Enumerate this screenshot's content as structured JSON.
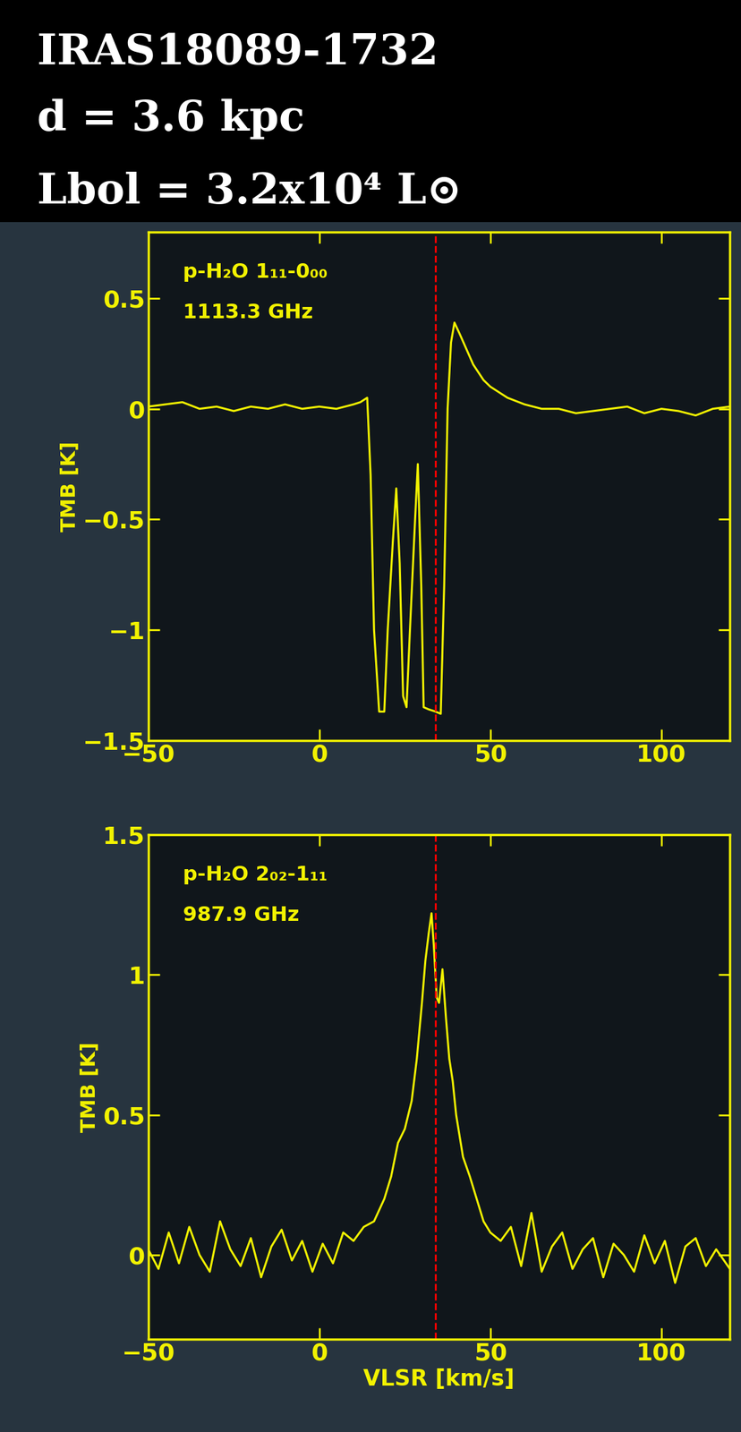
{
  "header": {
    "lines": [
      "IRAS18089-1732",
      "d = 3.6 kpc",
      "Lbol = 3.2x10⁴ L⊙"
    ]
  },
  "chart_data": [
    {
      "type": "line",
      "annotations": [
        "p-H₂O 1₁₁-0₀₀",
        "1113.3 GHz"
      ],
      "ylabel": "TMB [K]",
      "color": "#f2f200",
      "reference_velocity": 34,
      "x": [
        -50,
        -45,
        -40,
        -35,
        -30,
        -25,
        -20,
        -15,
        -10,
        -5,
        0,
        5,
        10,
        12,
        14,
        15,
        16,
        17.5,
        19,
        20,
        21.5,
        22.5,
        23.5,
        24.5,
        25.5,
        26.5,
        28,
        28.8,
        29.8,
        30.5,
        32,
        34,
        35.5,
        36.5,
        37.5,
        38.5,
        39.5,
        41,
        43,
        45,
        48,
        50,
        55,
        60,
        65,
        70,
        75,
        80,
        85,
        90,
        95,
        100,
        105,
        110,
        115,
        120
      ],
      "values": [
        0.01,
        0.02,
        0.03,
        0.0,
        0.01,
        -0.01,
        0.01,
        0.0,
        0.02,
        0.0,
        0.01,
        0.0,
        0.02,
        0.03,
        0.05,
        -0.3,
        -1.0,
        -1.37,
        -1.37,
        -1.0,
        -0.6,
        -0.36,
        -0.7,
        -1.3,
        -1.35,
        -1.0,
        -0.5,
        -0.25,
        -0.8,
        -1.35,
        -1.36,
        -1.37,
        -1.38,
        -0.8,
        0.0,
        0.3,
        0.39,
        0.34,
        0.27,
        0.2,
        0.13,
        0.1,
        0.05,
        0.02,
        0.0,
        0.0,
        -0.02,
        -0.01,
        0.0,
        0.01,
        -0.02,
        0.0,
        -0.01,
        -0.03,
        0.0,
        0.01
      ],
      "xlim": [
        -50,
        120
      ],
      "xticks": [
        {
          "value": -50,
          "label": "−50"
        },
        0,
        50,
        100
      ],
      "ylim": [
        -1.5,
        0.8
      ],
      "yticks": [
        {
          "value": -1.5,
          "label": "−1.5"
        },
        {
          "value": -1,
          "label": "−1"
        },
        {
          "value": -0.5,
          "label": "−0.5"
        },
        0,
        0.5
      ]
    },
    {
      "type": "line",
      "annotations": [
        "p-H₂O 2₀₂-1₁₁",
        "987.9 GHz"
      ],
      "ylabel": "TMB [K]",
      "xlabel": "VLSR [km/s]",
      "color": "#f2f200",
      "reference_velocity": 34,
      "x": [
        -50,
        -47,
        -44,
        -41,
        -38,
        -35,
        -32,
        -29,
        -26,
        -23,
        -20,
        -17,
        -14,
        -11,
        -8,
        -5,
        -2,
        1,
        4,
        7,
        10,
        13,
        16,
        19,
        21,
        23,
        25,
        27,
        28.5,
        30,
        31,
        32,
        32.8,
        33.5,
        34.3,
        35,
        36,
        37,
        38,
        39,
        40,
        42,
        44,
        46,
        48,
        50,
        53,
        56,
        59,
        62,
        65,
        68,
        71,
        74,
        77,
        80,
        83,
        86,
        89,
        92,
        95,
        98,
        101,
        104,
        107,
        110,
        113,
        116,
        120
      ],
      "values": [
        0.02,
        -0.05,
        0.08,
        -0.03,
        0.1,
        0.0,
        -0.06,
        0.12,
        0.02,
        -0.04,
        0.06,
        -0.08,
        0.03,
        0.09,
        -0.02,
        0.05,
        -0.06,
        0.04,
        -0.03,
        0.08,
        0.05,
        0.1,
        0.12,
        0.2,
        0.28,
        0.4,
        0.45,
        0.55,
        0.7,
        0.9,
        1.05,
        1.15,
        1.22,
        1.1,
        0.92,
        0.9,
        1.02,
        0.85,
        0.7,
        0.62,
        0.5,
        0.35,
        0.28,
        0.2,
        0.12,
        0.08,
        0.05,
        0.1,
        -0.04,
        0.15,
        -0.06,
        0.03,
        0.08,
        -0.05,
        0.02,
        0.06,
        -0.08,
        0.04,
        0.0,
        -0.06,
        0.07,
        -0.03,
        0.05,
        -0.1,
        0.03,
        0.06,
        -0.04,
        0.02,
        -0.05
      ],
      "xlim": [
        -50,
        120
      ],
      "xticks": [
        {
          "value": -50,
          "label": "−50"
        },
        0,
        50,
        100
      ],
      "ylim": [
        -0.3,
        1.5
      ],
      "yticks": [
        0,
        0.5,
        1,
        1.5
      ]
    }
  ]
}
